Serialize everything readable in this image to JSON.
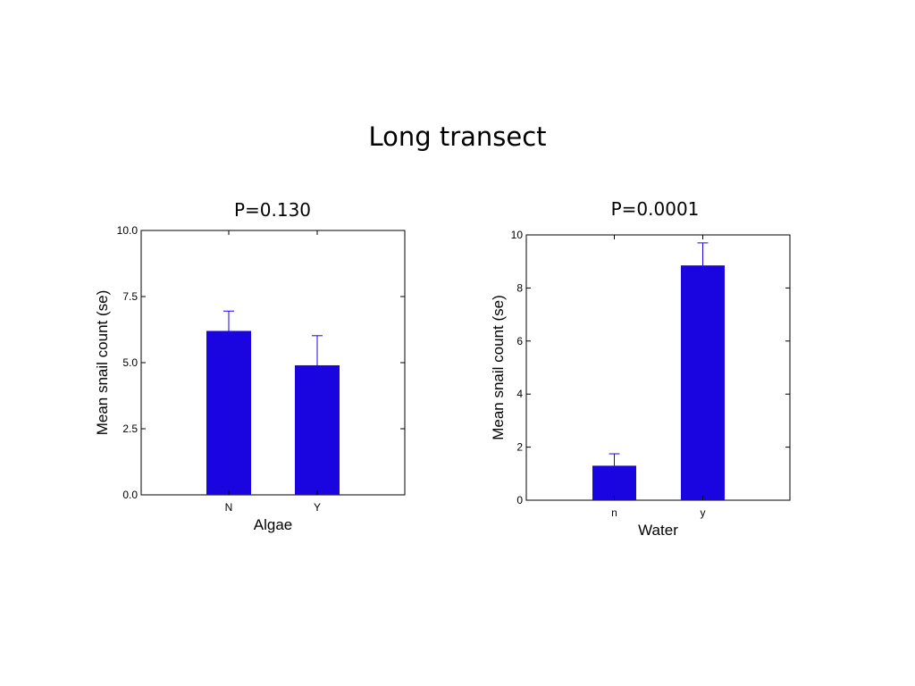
{
  "slide": {
    "title": "Long transect"
  },
  "chart_data": [
    {
      "type": "bar",
      "title": "P=0.130",
      "xlabel": "Algae",
      "ylabel": "Mean snail count (se)",
      "categories": [
        "N",
        "Y"
      ],
      "values": [
        6.2,
        4.9
      ],
      "errors": [
        0.75,
        1.12
      ],
      "ylim": [
        0,
        10
      ],
      "yticks": [
        "0.0",
        "2.5",
        "5.0",
        "7.5",
        "10.0"
      ],
      "ytick_values": [
        0,
        2.5,
        5,
        7.5,
        10
      ],
      "grid": false,
      "bar_color": "#1a05e0"
    },
    {
      "type": "bar",
      "title": "P=0.0001",
      "xlabel": "Water",
      "ylabel": "Mean snail count (se)",
      "categories": [
        "n",
        "y"
      ],
      "values": [
        1.3,
        8.85
      ],
      "errors": [
        0.45,
        0.85
      ],
      "ylim": [
        0,
        10
      ],
      "yticks": [
        "0",
        "2",
        "4",
        "6",
        "8",
        "10"
      ],
      "ytick_values": [
        0,
        2,
        4,
        6,
        8,
        10
      ],
      "grid": false,
      "bar_color": "#1a05e0"
    }
  ]
}
